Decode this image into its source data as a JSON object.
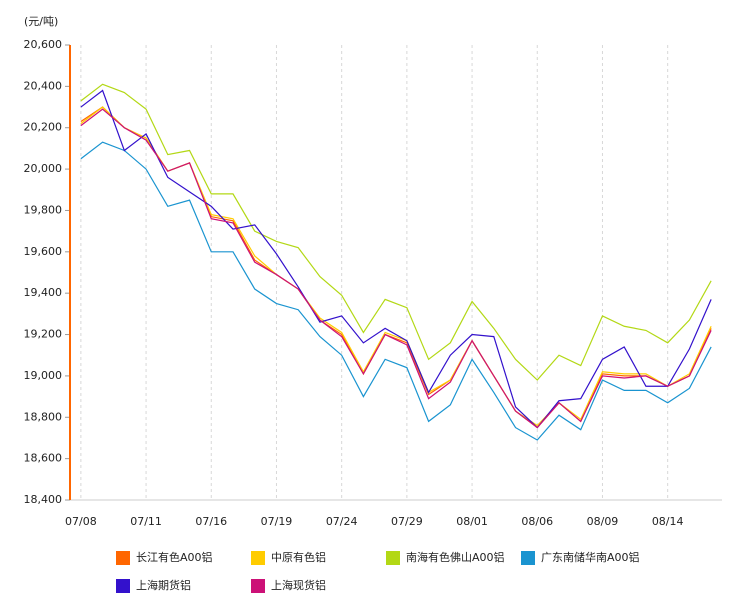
{
  "chart_data": {
    "type": "line",
    "y_label": "(元/吨)",
    "categories": [
      "07/08",
      null,
      null,
      "07/11",
      null,
      null,
      "07/16",
      null,
      null,
      "07/19",
      null,
      null,
      "07/24",
      null,
      null,
      "07/29",
      null,
      null,
      "08/01",
      null,
      null,
      "08/06",
      null,
      null,
      "08/09",
      null,
      null,
      "08/14",
      null,
      null
    ],
    "ylim": [
      18400,
      20600
    ],
    "yticks": [
      {
        "value": 18400,
        "label": "18,400"
      },
      {
        "value": 18600,
        "label": "18,600"
      },
      {
        "value": 18800,
        "label": "18,800"
      },
      {
        "value": 19000,
        "label": "19,000"
      },
      {
        "value": 19200,
        "label": "19,200"
      },
      {
        "value": 19400,
        "label": "19,400"
      },
      {
        "value": 19600,
        "label": "19,600"
      },
      {
        "value": 19800,
        "label": "19,800"
      },
      {
        "value": 20000,
        "label": "20,000"
      },
      {
        "value": 20200,
        "label": "20,200"
      },
      {
        "value": 20400,
        "label": "20,400"
      },
      {
        "value": 20600,
        "label": "20,600"
      }
    ],
    "grid": true,
    "legend": "bottom",
    "series": [
      {
        "name": "长江有色A00铝",
        "color": "#ff6600",
        "values": [
          20230,
          20300,
          20200,
          20150,
          19990,
          20030,
          19770,
          19750,
          19560,
          19490,
          19420,
          19270,
          19200,
          19010,
          19200,
          19160,
          18910,
          18980,
          19170,
          19000,
          18830,
          18750,
          18870,
          18780,
          19010,
          19000,
          19000,
          18950,
          19000,
          19230
        ]
      },
      {
        "name": "中原有色铝",
        "color": "#ffcc00",
        "values": [
          20220,
          20300,
          20200,
          20150,
          19990,
          20030,
          19780,
          19760,
          19580,
          19490,
          19420,
          19280,
          19210,
          19020,
          19210,
          19170,
          18920,
          18980,
          19170,
          19000,
          18830,
          18760,
          18870,
          18790,
          19020,
          19010,
          19010,
          18950,
          19010,
          19240
        ]
      },
      {
        "name": "南海有色佛山A00铝",
        "color": "#b3d815",
        "values": [
          20330,
          20410,
          20370,
          20290,
          20070,
          20090,
          19880,
          19880,
          19700,
          19650,
          19620,
          19480,
          19390,
          19210,
          19370,
          19330,
          19080,
          19160,
          19360,
          19230,
          19080,
          18980,
          19100,
          19050,
          19290,
          19240,
          19220,
          19160,
          19270,
          19460
        ]
      },
      {
        "name": "广东南储华南A00铝",
        "color": "#1a94d0",
        "values": [
          20050,
          20130,
          20090,
          20000,
          19820,
          19850,
          19600,
          19600,
          19420,
          19350,
          19320,
          19190,
          19100,
          18900,
          19080,
          19040,
          18780,
          18860,
          19080,
          18920,
          18750,
          18690,
          18810,
          18740,
          18980,
          18930,
          18930,
          18870,
          18940,
          19140
        ]
      },
      {
        "name": "上海期货铝",
        "color": "#3311cc",
        "values": [
          20300,
          20380,
          20090,
          20170,
          19960,
          19890,
          19820,
          19710,
          19730,
          19590,
          19430,
          19260,
          19290,
          19160,
          19230,
          19170,
          18920,
          19100,
          19200,
          19190,
          18850,
          18750,
          18880,
          18890,
          19080,
          19140,
          18950,
          18950,
          19130,
          19370
        ]
      },
      {
        "name": "上海现货铝",
        "color": "#cc1177",
        "values": [
          20210,
          20290,
          20200,
          20140,
          19990,
          20030,
          19760,
          19740,
          19550,
          19490,
          19420,
          19270,
          19190,
          19010,
          19200,
          19150,
          18890,
          18970,
          19170,
          19000,
          18830,
          18750,
          18870,
          18780,
          19000,
          18990,
          19000,
          18950,
          19000,
          19220
        ]
      }
    ]
  }
}
